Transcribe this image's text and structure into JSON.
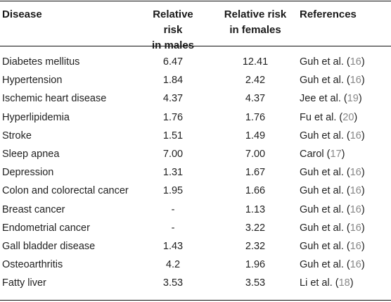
{
  "headers": {
    "disease": "Disease",
    "male_line1": "Relative risk",
    "male_line2": "in males",
    "female_line1": "Relative risk",
    "female_line2": "in females",
    "references": "References"
  },
  "rows": [
    {
      "disease": "Diabetes mellitus",
      "male": "6.47",
      "female": "12.41",
      "ref_text": "Guh et al. (",
      "ref_num": "16",
      "ref_close": ")"
    },
    {
      "disease": "Hypertension",
      "male": "1.84",
      "female": "2.42",
      "ref_text": "Guh et al. (",
      "ref_num": "16",
      "ref_close": ")"
    },
    {
      "disease": "Ischemic heart disease",
      "male": "4.37",
      "female": "4.37",
      "ref_text": "Jee et al. (",
      "ref_num": "19",
      "ref_close": ")"
    },
    {
      "disease": "Hyperlipidemia",
      "male": "1.76",
      "female": "1.76",
      "ref_text": "Fu et al. (",
      "ref_num": "20",
      "ref_close": ")"
    },
    {
      "disease": "Stroke",
      "male": "1.51",
      "female": "1.49",
      "ref_text": "Guh et al. (",
      "ref_num": "16",
      "ref_close": ")"
    },
    {
      "disease": "Sleep apnea",
      "male": "7.00",
      "female": "7.00",
      "ref_text": "Carol (",
      "ref_num": "17",
      "ref_close": ")"
    },
    {
      "disease": "Depression",
      "male": "1.31",
      "female": "1.67",
      "ref_text": "Guh et al. (",
      "ref_num": "16",
      "ref_close": ")"
    },
    {
      "disease": "Colon and colorectal cancer",
      "male": "1.95",
      "female": "1.66",
      "ref_text": "Guh et al. (",
      "ref_num": "16",
      "ref_close": ")"
    },
    {
      "disease": "Breast cancer",
      "male": "-",
      "female": "1.13",
      "ref_text": "Guh et al. (",
      "ref_num": "16",
      "ref_close": ")"
    },
    {
      "disease": "Endometrial cancer",
      "male": "-",
      "female": "3.22",
      "ref_text": "Guh et al. (",
      "ref_num": "16",
      "ref_close": ")"
    },
    {
      "disease": "Gall bladder disease",
      "male": "1.43",
      "female": "2.32",
      "ref_text": "Guh et al. (",
      "ref_num": "16",
      "ref_close": ")"
    },
    {
      "disease": "Osteoarthritis",
      "male": "4.2",
      "female": "1.96",
      "ref_text": "Guh et al. (",
      "ref_num": "16",
      "ref_close": ")"
    },
    {
      "disease": "Fatty liver",
      "male": "3.53",
      "female": "3.53",
      "ref_text": "Li et al. (",
      "ref_num": "18",
      "ref_close": ")"
    }
  ]
}
